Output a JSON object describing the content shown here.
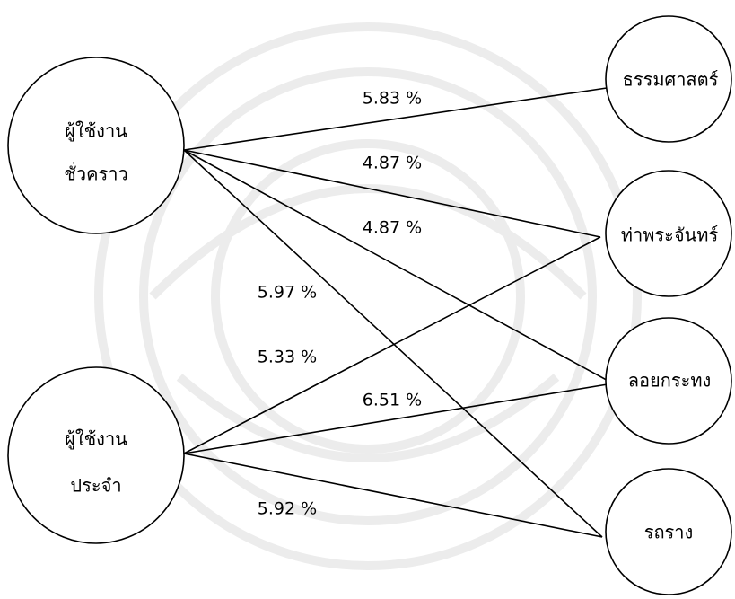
{
  "nodes": {
    "temporary_users": {
      "line1": "ผู้ใช้งาน",
      "line2": "ชั่วคราว"
    },
    "regular_users": {
      "line1": "ผู้ใช้งาน",
      "line2": "ประจำ"
    },
    "thammasat": {
      "label": "ธรรมศาสตร์"
    },
    "tha_phra_chan": {
      "label": "ท่าพระจันทร์"
    },
    "loi_krathong": {
      "label": "ลอยกระทง"
    },
    "rot_rang": {
      "label": "รถราง"
    }
  },
  "edges": {
    "temp_to_thammasat": "5.83 %",
    "temp_to_thaphrachan": "4.87 %",
    "temp_to_loikrathong": "4.87 %",
    "temp_to_rotrang": "5.97 %",
    "regular_to_thaphrachan": "5.33 %",
    "regular_to_loikrathong": "6.51 %",
    "regular_to_rotrang": "5.92 %"
  }
}
